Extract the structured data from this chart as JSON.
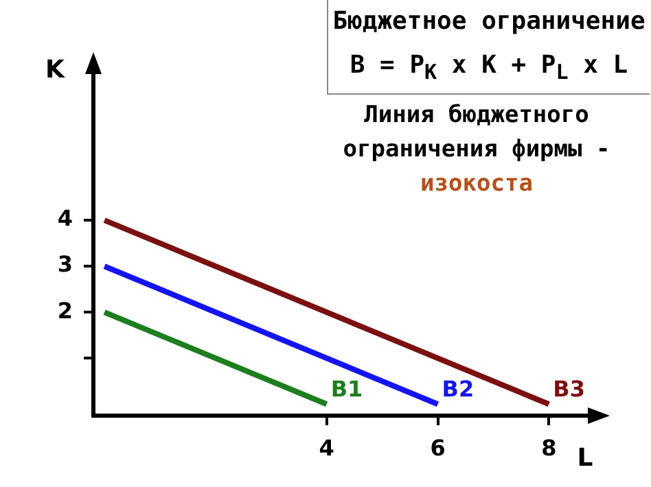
{
  "chart_data": {
    "type": "line",
    "title": "Бюджетное ограничение",
    "subtitle": "B = P$_{K}$ x K + P$_{L}$ x L",
    "annotations": [
      "Линия бюджетного ограничения фирмы -",
      "изокоста"
    ],
    "xlabel": "L",
    "ylabel": "K",
    "series": [
      {
        "name": "B1",
        "color": "#1e7d1e",
        "x": [
          0,
          4
        ],
        "values": [
          2,
          0
        ]
      },
      {
        "name": "B2",
        "color": "#1414f0",
        "x": [
          0,
          6
        ],
        "values": [
          3,
          0
        ]
      },
      {
        "name": "B3",
        "color": "#7a1010",
        "x": [
          0,
          8
        ],
        "values": [
          4,
          0
        ]
      }
    ],
    "xlim": [
      -0.2,
      8.8
    ],
    "ylim": [
      -0.25,
      7.3
    ],
    "xticks": [
      4,
      6,
      8
    ],
    "yticks": [
      {
        "value": 1,
        "label": null
      },
      2,
      3,
      4
    ],
    "grid": false,
    "legend": false,
    "marker": "none",
    "line_style": "solid"
  }
}
